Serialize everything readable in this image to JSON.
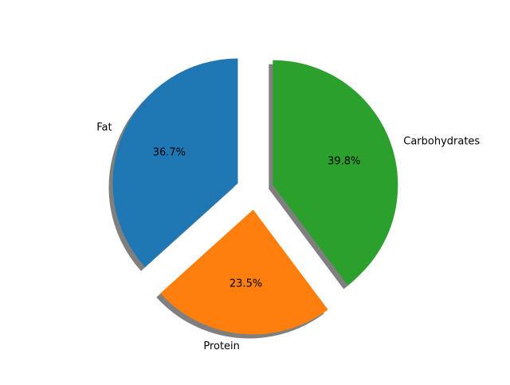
{
  "chart_data": {
    "type": "pie",
    "title": "",
    "legend": "none",
    "start_angle_deg": 90,
    "direction": "counterclockwise",
    "explode": [
      0.15,
      0.15,
      0.15
    ],
    "shadow": true,
    "categories": [
      "Fat",
      "Protein",
      "Carbohydrates"
    ],
    "values": [
      36.7,
      23.5,
      39.8
    ],
    "percent_labels": [
      "36.7%",
      "23.5%",
      "39.8%"
    ],
    "colors": [
      "#1f77b4",
      "#ff7f0e",
      "#2ca02c"
    ]
  }
}
